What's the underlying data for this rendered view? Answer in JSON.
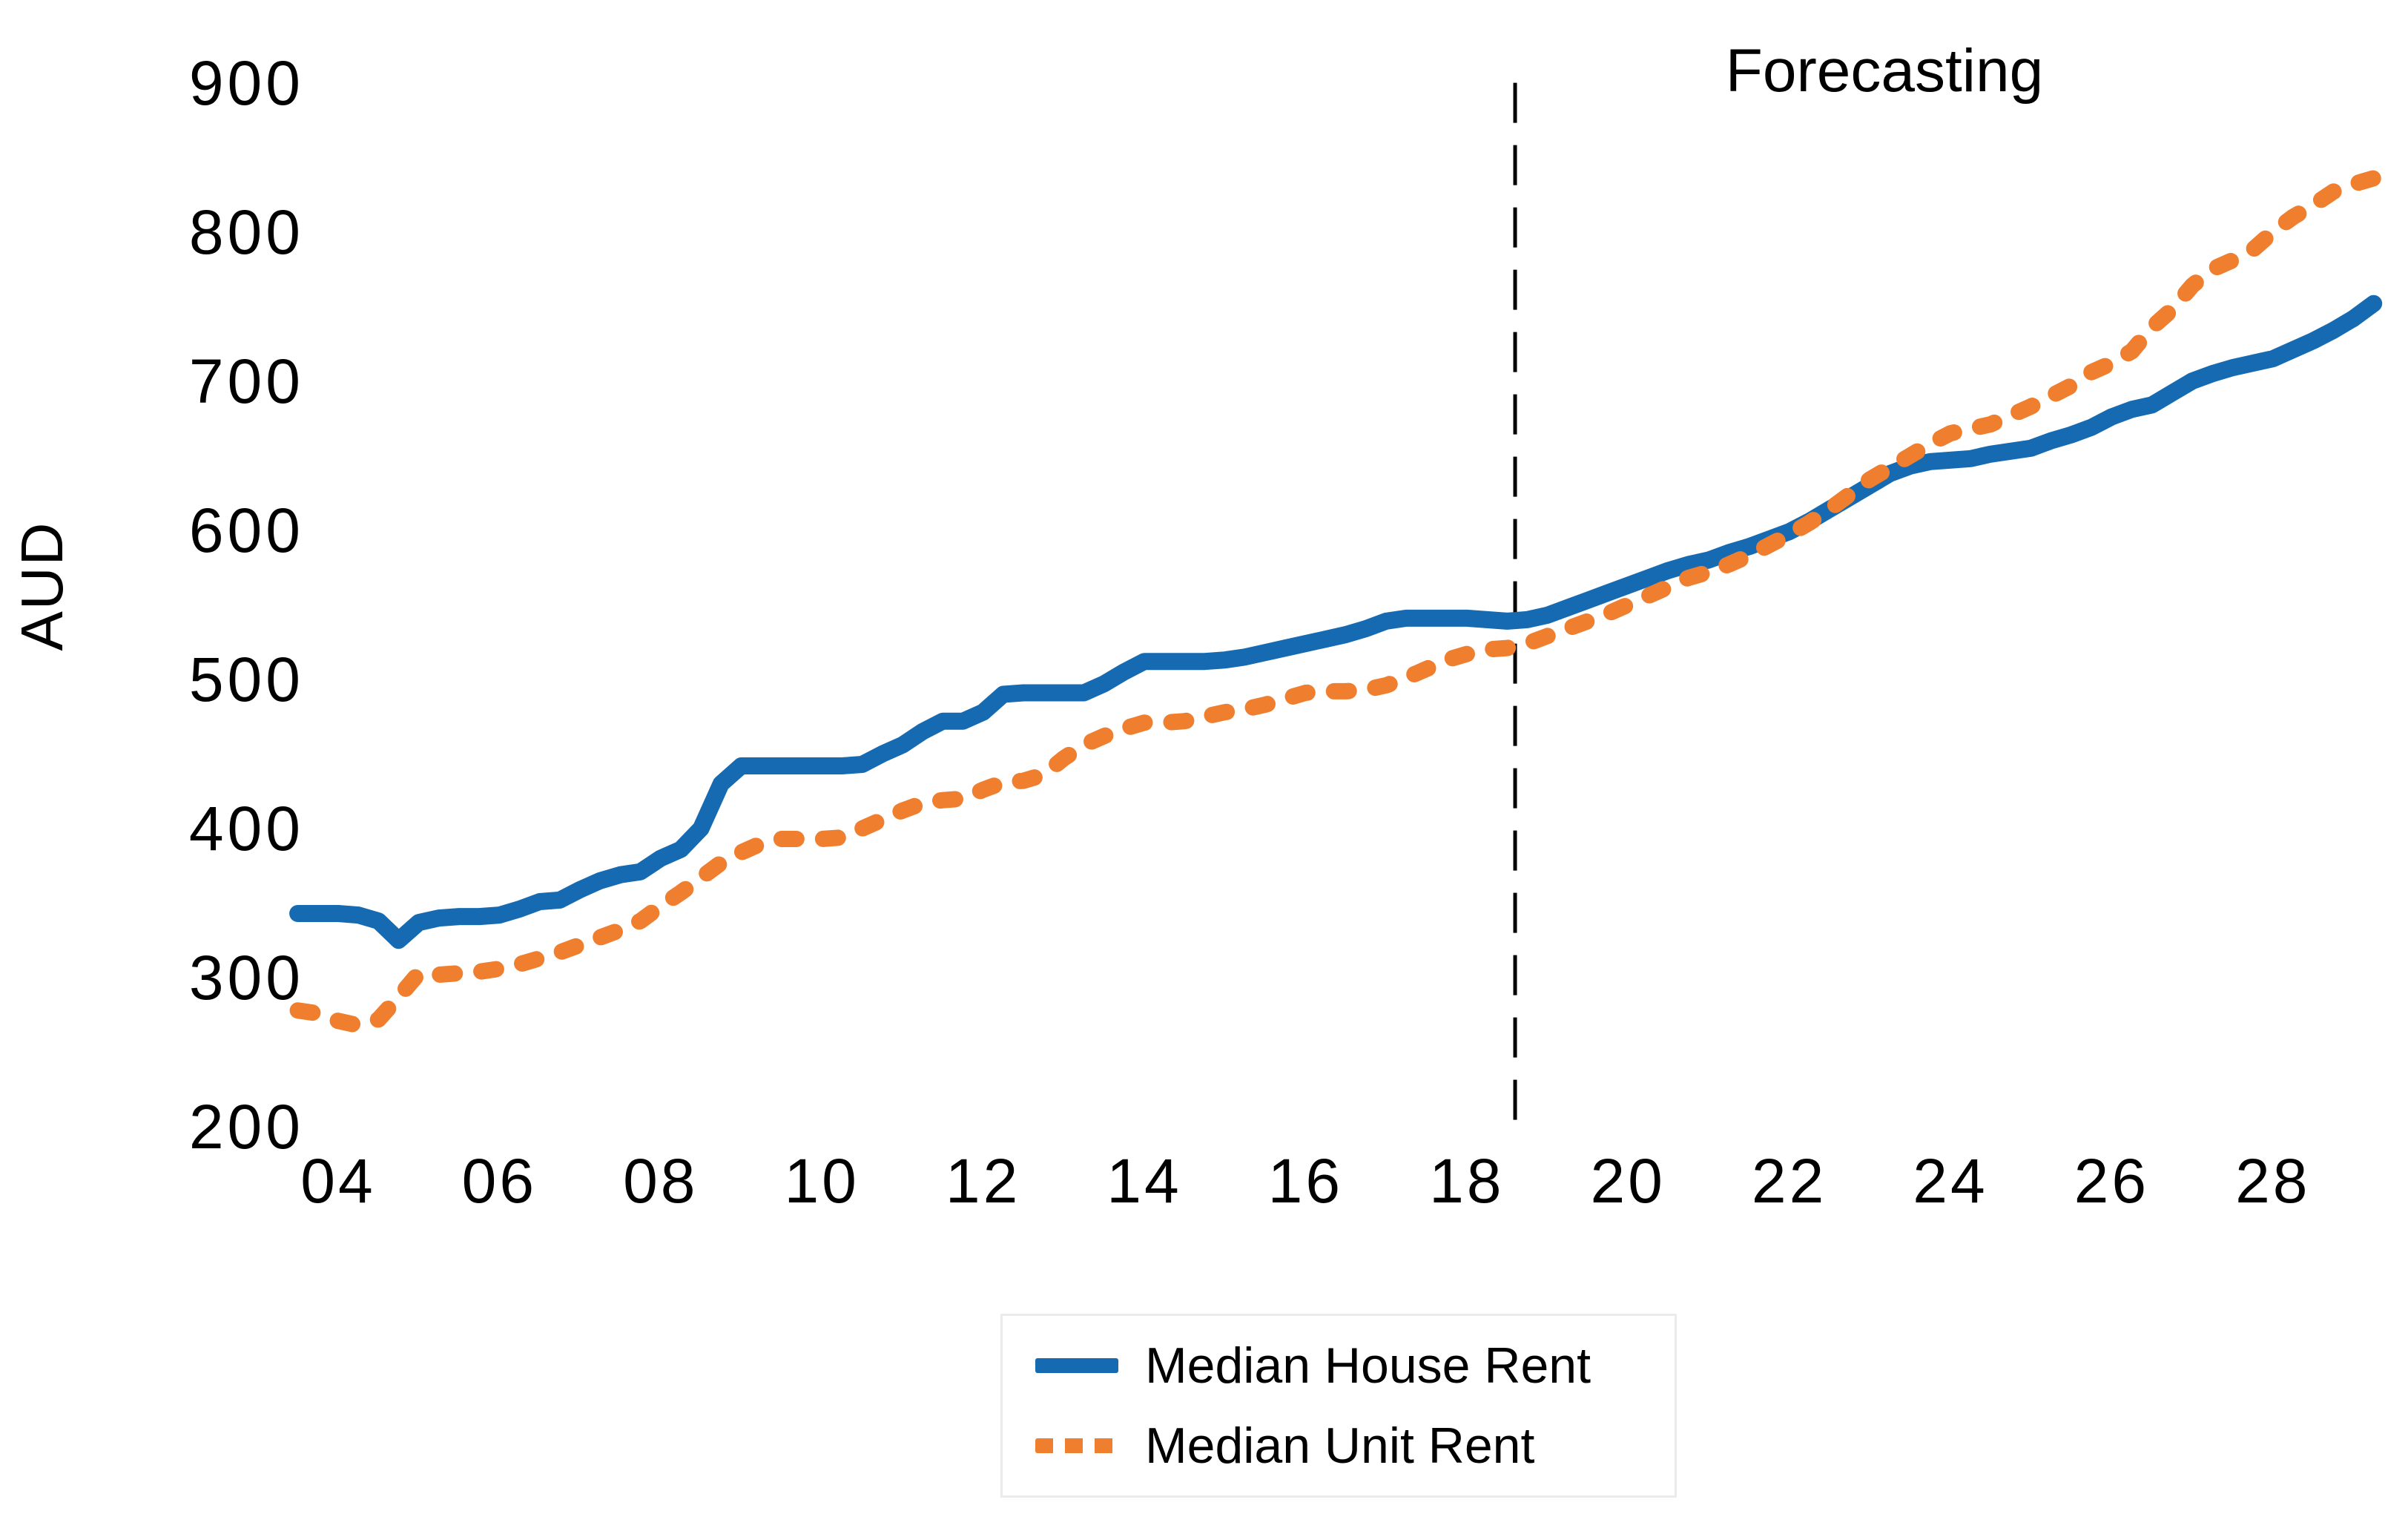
{
  "chart_data": {
    "type": "line",
    "title": "",
    "annotation": "Forecasting",
    "ylabel": "AUD",
    "xlabel": "",
    "grid": false,
    "legend_position": "bottom-center",
    "ylim": [
      200,
      900
    ],
    "xlim": [
      2003.4,
      2029.4
    ],
    "y_ticks": [
      900,
      800,
      700,
      600,
      500,
      400,
      300,
      200
    ],
    "x_ticks": [
      {
        "year": 2004,
        "label": "04"
      },
      {
        "year": 2006,
        "label": "06"
      },
      {
        "year": 2008,
        "label": "08"
      },
      {
        "year": 2010,
        "label": "10"
      },
      {
        "year": 2012,
        "label": "12"
      },
      {
        "year": 2014,
        "label": "14"
      },
      {
        "year": 2016,
        "label": "16"
      },
      {
        "year": 2018,
        "label": "18"
      },
      {
        "year": 2020,
        "label": "20"
      },
      {
        "year": 2022,
        "label": "22"
      },
      {
        "year": 2024,
        "label": "24"
      },
      {
        "year": 2026,
        "label": "26"
      },
      {
        "year": 2028,
        "label": "28"
      }
    ],
    "forecast_start": 2018.6,
    "x": [
      2003.5,
      2003.75,
      2004.0,
      2004.25,
      2004.5,
      2004.75,
      2005.0,
      2005.25,
      2005.5,
      2005.75,
      2006.0,
      2006.25,
      2006.5,
      2006.75,
      2007.0,
      2007.25,
      2007.5,
      2007.75,
      2008.0,
      2008.25,
      2008.5,
      2008.75,
      2009.0,
      2009.25,
      2009.5,
      2009.75,
      2010.0,
      2010.25,
      2010.5,
      2010.75,
      2011.0,
      2011.25,
      2011.5,
      2011.75,
      2012.0,
      2012.25,
      2012.5,
      2012.75,
      2013.0,
      2013.25,
      2013.5,
      2013.75,
      2014.0,
      2014.25,
      2014.5,
      2014.75,
      2015.0,
      2015.25,
      2015.5,
      2015.75,
      2016.0,
      2016.25,
      2016.5,
      2016.75,
      2017.0,
      2017.25,
      2017.5,
      2017.75,
      2018.0,
      2018.25,
      2018.5,
      2018.75,
      2019.0,
      2019.25,
      2019.5,
      2019.75,
      2020.0,
      2020.25,
      2020.5,
      2020.75,
      2021.0,
      2021.25,
      2021.5,
      2021.75,
      2022.0,
      2022.25,
      2022.5,
      2022.75,
      2023.0,
      2023.25,
      2023.5,
      2023.75,
      2024.0,
      2024.25,
      2024.5,
      2024.75,
      2025.0,
      2025.25,
      2025.5,
      2025.75,
      2026.0,
      2026.25,
      2026.5,
      2026.75,
      2027.0,
      2027.25,
      2027.5,
      2027.75,
      2028.0,
      2028.25,
      2028.5,
      2028.75,
      2029.0,
      2029.25
    ],
    "series": [
      {
        "name": "Median House Rent",
        "color": "#156ab2",
        "style": "solid",
        "values": [
          343,
          343,
          343,
          342,
          338,
          325,
          337,
          340,
          341,
          341,
          342,
          346,
          351,
          352,
          359,
          365,
          369,
          371,
          380,
          386,
          400,
          430,
          442,
          442,
          442,
          442,
          442,
          442,
          443,
          450,
          456,
          465,
          472,
          472,
          478,
          490,
          491,
          491,
          491,
          491,
          497,
          505,
          512,
          512,
          512,
          512,
          513,
          515,
          518,
          521,
          524,
          527,
          530,
          534,
          539,
          541,
          541,
          541,
          541,
          540,
          539,
          540,
          543,
          548,
          553,
          558,
          563,
          568,
          573,
          577,
          580,
          585,
          589,
          594,
          599,
          606,
          614,
          622,
          630,
          638,
          643,
          646,
          647,
          648,
          651,
          653,
          655,
          660,
          664,
          669,
          676,
          681,
          684,
          692,
          700,
          705,
          709,
          712,
          715,
          721,
          727,
          734,
          742,
          752
        ]
      },
      {
        "name": "Median Unit Rent",
        "color": "#ef7e2e",
        "style": "dashed",
        "values": [
          278,
          276,
          271,
          268,
          272,
          287,
          303,
          302,
          303,
          304,
          306,
          309,
          313,
          317,
          322,
          327,
          332,
          338,
          348,
          357,
          367,
          377,
          384,
          390,
          393,
          393,
          393,
          394,
          400,
          406,
          412,
          417,
          419,
          420,
          426,
          431,
          432,
          436,
          447,
          456,
          462,
          467,
          471,
          471,
          472,
          475,
          478,
          480,
          483,
          487,
          491,
          492,
          492,
          493,
          496,
          501,
          507,
          513,
          517,
          520,
          521,
          524,
          529,
          534,
          539,
          544,
          550,
          556,
          562,
          568,
          572,
          577,
          583,
          590,
          597,
          605,
          614,
          624,
          634,
          642,
          650,
          658,
          665,
          668,
          671,
          677,
          683,
          690,
          697,
          706,
          712,
          720,
          736,
          748,
          764,
          775,
          781,
          788,
          800,
          810,
          818,
          827,
          832,
          836
        ]
      }
    ],
    "divider_color": "#000000"
  }
}
